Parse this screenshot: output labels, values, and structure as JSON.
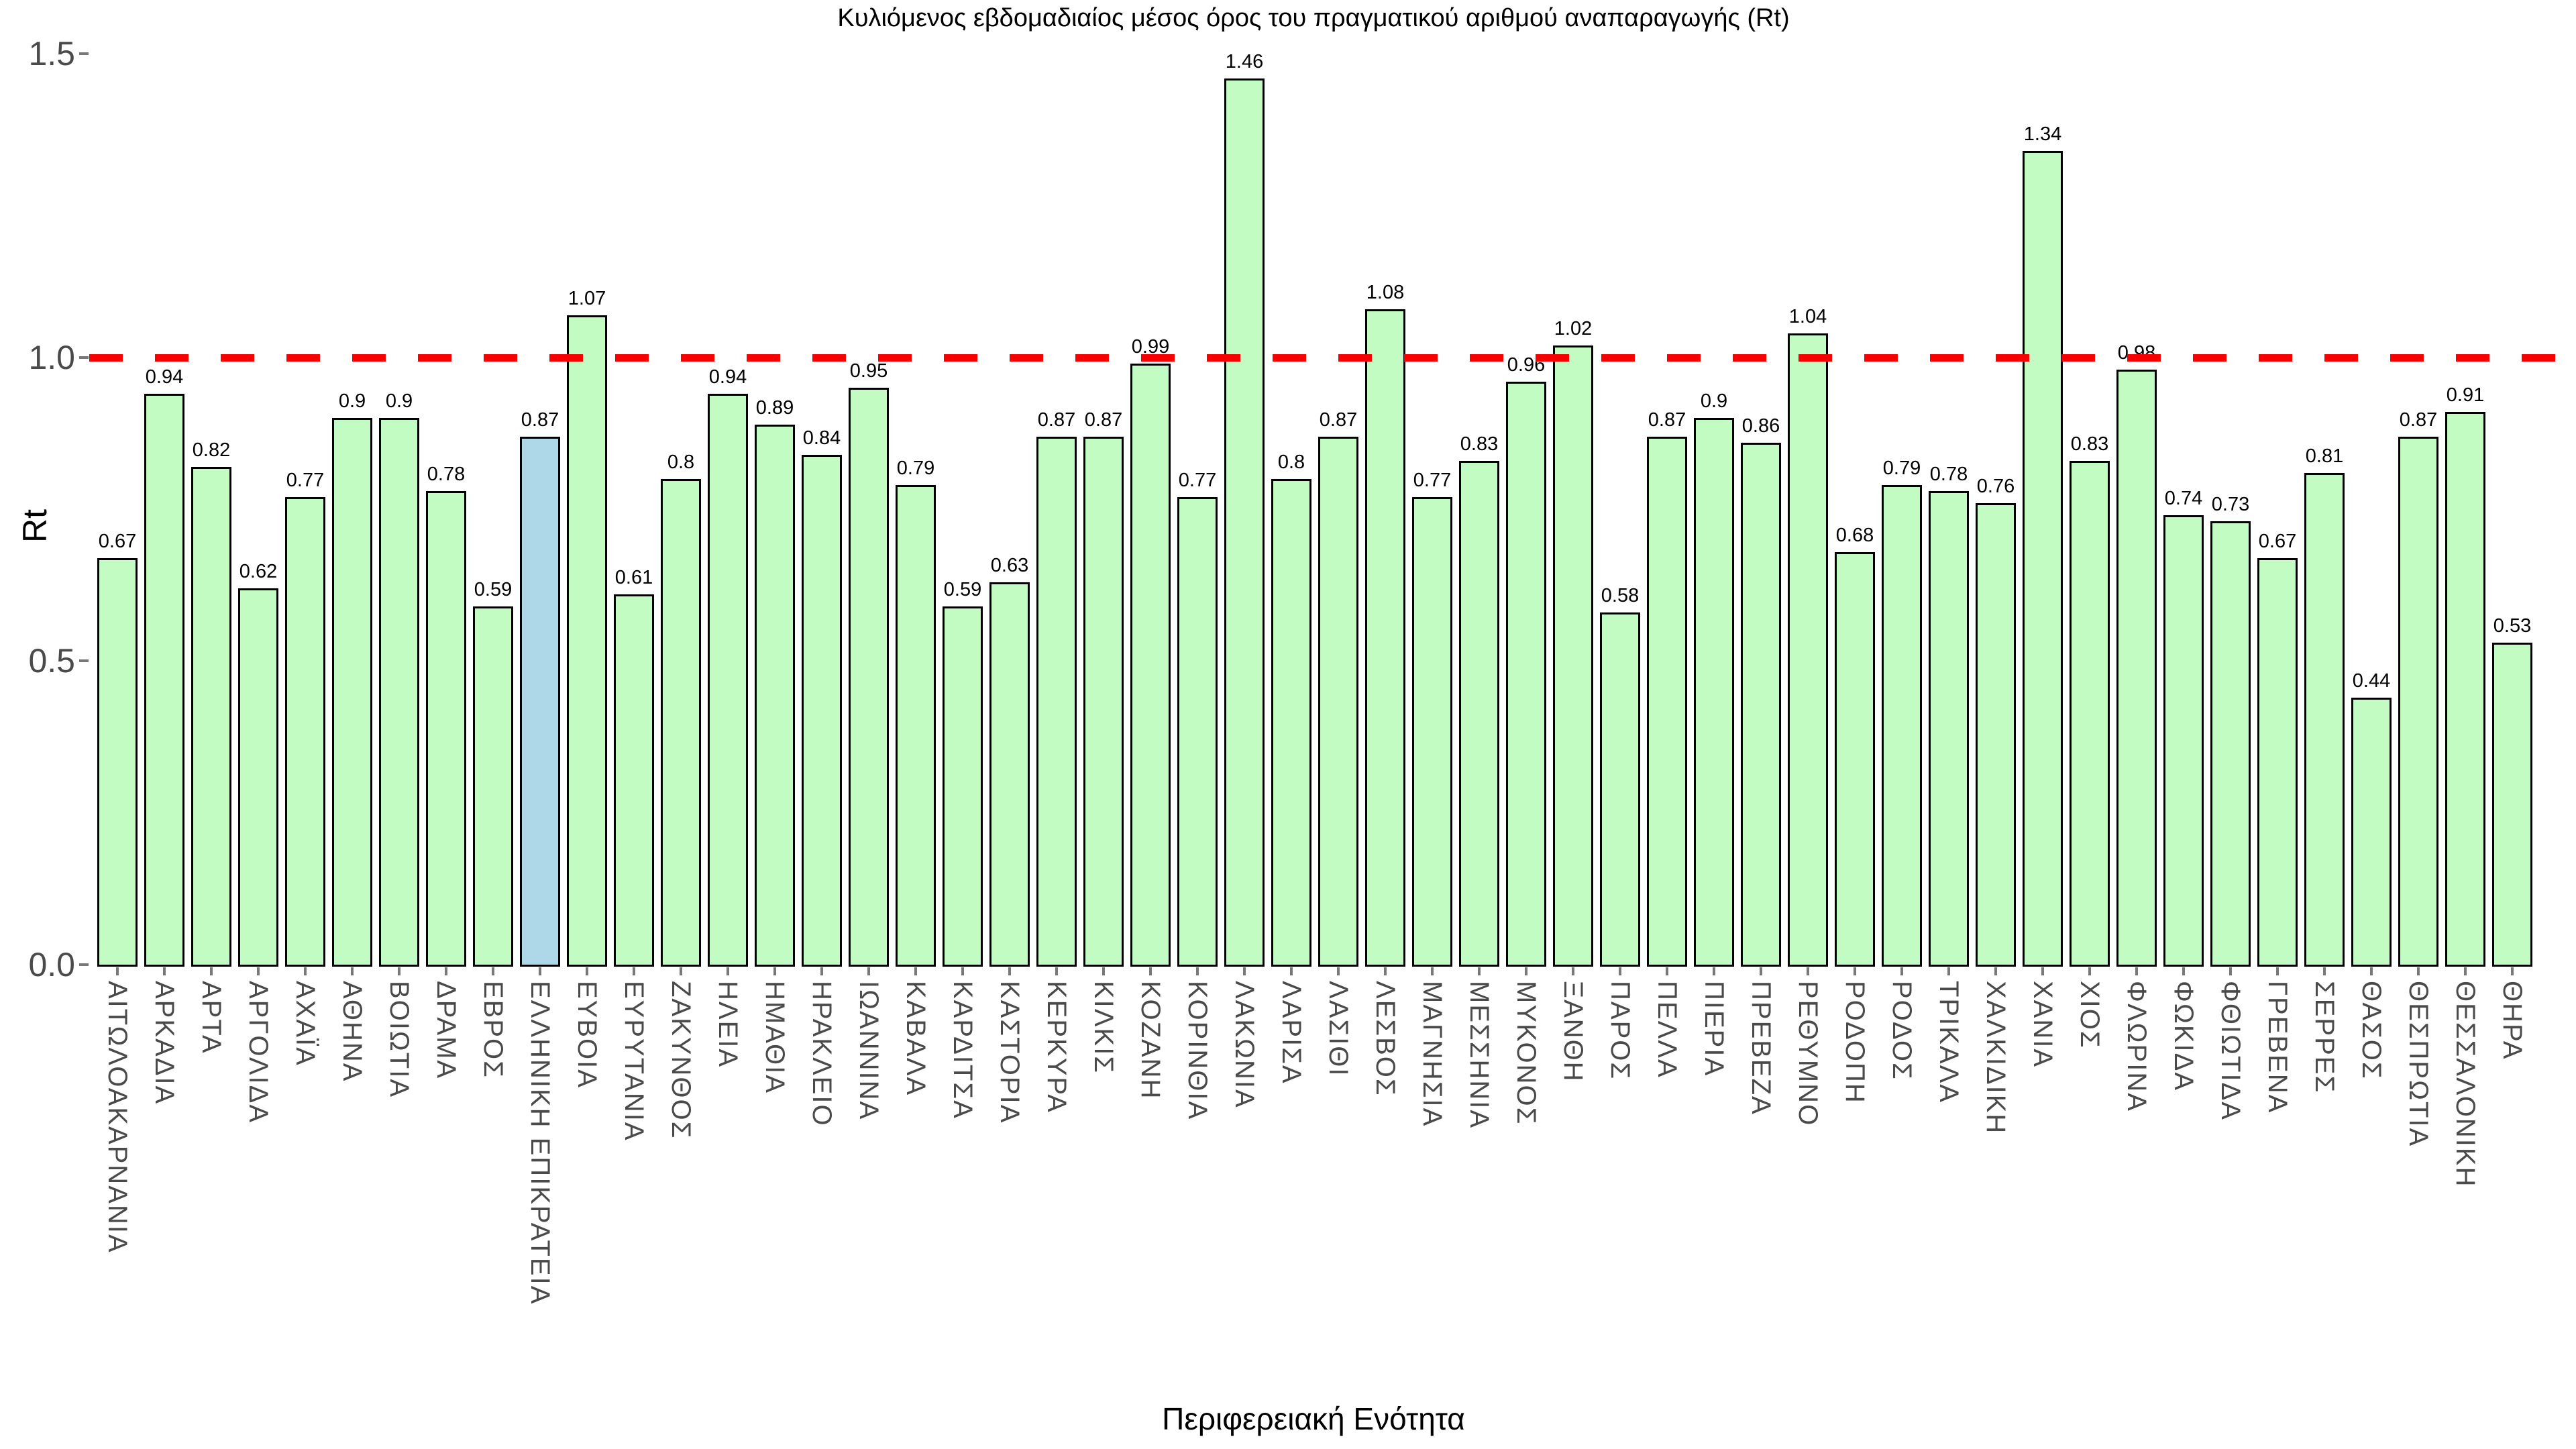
{
  "chart_data": {
    "type": "bar",
    "title": "Κυλιόμενος εβδομαδιαίος μέσος όρος του πραγματικού αριθμού αναπαραγωγής (Rt)",
    "xlabel": "Περιφερειακή Ενότητα",
    "ylabel": "Rt",
    "categories": [
      "ΑΙΤΩΛΟΑΚΑΡΝΑΝΙΑ",
      "ΑΡΚΑΔΙΑ",
      "ΑΡΤΑ",
      "ΑΡΓΟΛΙΔΑ",
      "ΑΧΑΪΑ",
      "ΑΘΗΝΑ",
      "ΒΟΙΩΤΙΑ",
      "ΔΡΑΜΑ",
      "ΕΒΡΟΣ",
      "ΕΛΛΗΝΙΚΗ ΕΠΙΚΡΑΤΕΙΑ",
      "ΕΥΒΟΙΑ",
      "ΕΥΡΥΤΑΝΙΑ",
      "ΖΑΚΥΝΘΟΣ",
      "ΗΛΕΙΑ",
      "ΗΜΑΘΙΑ",
      "ΗΡΑΚΛΕΙΟ",
      "ΙΩΑΝΝΙΝΑ",
      "ΚΑΒΑΛΑ",
      "ΚΑΡΔΙΤΣΑ",
      "ΚΑΣΤΟΡΙΑ",
      "ΚΕΡΚΥΡΑ",
      "ΚΙΛΚΙΣ",
      "ΚΟΖΑΝΗ",
      "ΚΟΡΙΝΘΙΑ",
      "ΛΑΚΩΝΙΑ",
      "ΛΑΡΙΣΑ",
      "ΛΑΣΙΘΙ",
      "ΛΕΣΒΟΣ",
      "ΜΑΓΝΗΣΙΑ",
      "ΜΕΣΣΗΝΙΑ",
      "ΜΥΚΟΝΟΣ",
      "ΞΑΝΘΗ",
      "ΠΑΡΟΣ",
      "ΠΕΛΛΑ",
      "ΠΙΕΡΙΑ",
      "ΠΡΕΒΕΖΑ",
      "ΡΕΘΥΜΝΟ",
      "ΡΟΔΟΠΗ",
      "ΡΟΔΟΣ",
      "ΤΡΙΚΑΛΑ",
      "ΧΑΛΚΙΔΙΚΗ",
      "ΧΑΝΙΑ",
      "ΧΙΟΣ",
      "ΦΛΩΡΙΝΑ",
      "ΦΩΚΙΔΑ",
      "ΦΘΙΩΤΙΔΑ",
      "ΓΡΕΒΕΝΑ",
      "ΣΕΡΡΕΣ",
      "ΘΑΣΟΣ",
      "ΘΕΣΠΡΩΤΙΑ",
      "ΘΕΣΣΑΛΟΝΙΚΗ",
      "ΘΗΡΑ"
    ],
    "values": [
      0.67,
      0.94,
      0.82,
      0.62,
      0.77,
      0.9,
      0.9,
      0.78,
      0.59,
      0.87,
      1.07,
      0.61,
      0.8,
      0.94,
      0.89,
      0.84,
      0.95,
      0.79,
      0.59,
      0.63,
      0.87,
      0.87,
      0.99,
      0.77,
      1.46,
      0.8,
      0.87,
      1.08,
      0.77,
      0.83,
      0.96,
      1.02,
      0.58,
      0.87,
      0.9,
      0.86,
      1.04,
      0.68,
      0.79,
      0.78,
      0.76,
      1.34,
      0.83,
      0.98,
      0.74,
      0.73,
      0.67,
      0.81,
      0.44,
      0.87,
      0.91,
      0.53
    ],
    "bar_labels": [
      "0.67",
      "0.94",
      "0.82",
      "0.62",
      "0.77",
      "0.9",
      "0.9",
      "0.78",
      "0.59",
      "0.87",
      "1.07",
      "0.61",
      "0.8",
      "0.94",
      "0.89",
      "0.84",
      "0.95",
      "0.79",
      "0.59",
      "0.63",
      "0.87",
      "0.87",
      "0.99",
      "0.77",
      "1.46",
      "0.8",
      "0.87",
      "1.08",
      "0.77",
      "0.83",
      "0.96",
      "1.02",
      "0.58",
      "0.87",
      "0.9",
      "0.86",
      "1.04",
      "0.68",
      "0.79",
      "0.78",
      "0.76",
      "1.34",
      "0.83",
      "0.98",
      "0.74",
      "0.73",
      "0.67",
      "0.81",
      "0.44",
      "0.87",
      "0.91",
      "0.53"
    ],
    "highlight_category": "ΕΛΛΗΝΙΚΗ ΕΠΙΚΡΑΤΕΙΑ",
    "highlight_index": 9,
    "yticks": [
      "0.0",
      "0.5",
      "1.0",
      "1.5"
    ],
    "ytick_values": [
      0.0,
      0.5,
      1.0,
      1.5
    ],
    "ylim": [
      0,
      1.5
    ],
    "reference_line_y": 1.0,
    "grid": false,
    "legend": false,
    "colors": {
      "bar_fill": "#c2fcc2",
      "highlight_fill": "#aed8e8",
      "bar_edge": "#000000",
      "reference_line": "#f80000",
      "tick_label": "#4a4a4a",
      "title_text": "#000000"
    }
  }
}
